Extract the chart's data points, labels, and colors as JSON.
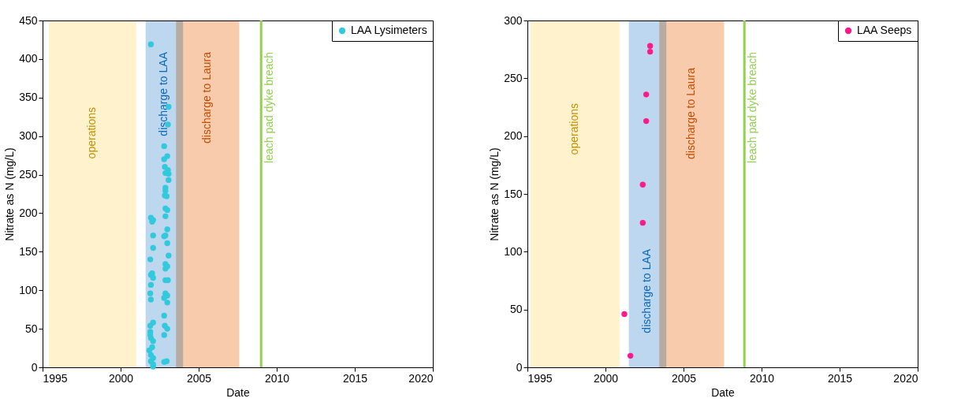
{
  "chart_data": [
    {
      "type": "scatter",
      "xlabel": "Date",
      "ylabel": "Nitrate as N (mg/L)",
      "xlim": [
        1995,
        2020
      ],
      "xticks": [
        1995,
        2000,
        2005,
        2010,
        2015,
        2020
      ],
      "ylim": [
        0,
        450
      ],
      "yticks": [
        0,
        50,
        100,
        150,
        200,
        250,
        300,
        350,
        400,
        450
      ],
      "legend": "top right",
      "marker": "circle",
      "grid": false,
      "bands": [
        {
          "axis": "x",
          "from": 1995.4,
          "to": 2001.0,
          "label": "operations",
          "color": "#fff2cc"
        },
        {
          "axis": "x",
          "from": 2001.6,
          "to": 2004.0,
          "label": "discharge to LAA",
          "color": "#bdd7ee"
        },
        {
          "axis": "x",
          "from": 2003.55,
          "to": 2007.6,
          "label": "discharge to Laura",
          "color": "#f8cbad"
        }
      ],
      "ref_lines": [
        {
          "axis": "x",
          "value": 2009,
          "label": "leach pad dyke breach",
          "color": "#92d050"
        }
      ],
      "series": [
        {
          "name": "LAA Lysimeters",
          "color": "#33c9dc",
          "x": [
            2001.94,
            2001.94,
            2002.08,
            2002.02,
            2002.08,
            2002.08,
            2001.9,
            2002.02,
            2001.94,
            2002.08,
            2001.94,
            2001.9,
            2001.94,
            2002.08,
            2001.9,
            2001.9,
            2001.9,
            2001.94,
            2002.08,
            2001.84,
            2002.02,
            2001.94,
            2002.08,
            2001.94,
            2002.08,
            2002.08,
            2003.07,
            2003.03,
            2002.79,
            2002.99,
            2002.79,
            2002.83,
            2003.03,
            2002.87,
            2003.07,
            2003.07,
            2002.87,
            2002.87,
            2002.83,
            2002.95,
            2002.87,
            2002.99,
            2002.87,
            2002.99,
            2002.87,
            2002.79,
            2002.99,
            2003.07,
            2002.87,
            2002.99,
            2002.87,
            2002.87,
            2003.03,
            2002.87,
            2002.99,
            2002.79,
            2002.99,
            2002.79,
            2002.83,
            2002.99,
            2002.79,
            2002.79,
            2002.95
          ],
          "values": [
            419,
            194,
            191,
            189,
            171,
            155,
            140,
            122,
            120,
            116,
            107,
            96,
            88,
            58,
            54,
            46,
            42,
            38,
            34,
            22,
            26,
            16,
            12,
            8,
            4,
            1,
            338,
            315,
            287,
            274,
            270,
            260,
            256,
            252,
            251,
            243,
            233,
            229,
            223,
            222,
            206,
            204,
            196,
            179,
            171,
            170,
            161,
            145,
            134,
            131,
            128,
            113,
            113,
            96,
            93,
            90,
            84,
            67,
            54,
            50,
            42,
            7,
            8
          ]
        }
      ]
    },
    {
      "type": "scatter",
      "xlabel": "Date",
      "ylabel": "Nitrate as N (mg/L)",
      "xlim": [
        1995,
        2020
      ],
      "xticks": [
        1995,
        2000,
        2005,
        2010,
        2015,
        2020
      ],
      "ylim": [
        0,
        300
      ],
      "yticks": [
        0,
        50,
        100,
        150,
        200,
        250,
        300
      ],
      "legend": "top right",
      "marker": "circle",
      "grid": false,
      "bands": [
        {
          "axis": "x",
          "from": 1995.2,
          "to": 2000.9,
          "label": "operations",
          "color": "#fff2cc"
        },
        {
          "axis": "x",
          "from": 2001.5,
          "to": 2003.9,
          "label": "discharge to LAA",
          "color": "#bdd7ee"
        },
        {
          "axis": "x",
          "from": 2003.45,
          "to": 2007.6,
          "label": "discharge to Laura",
          "color": "#f8cbad"
        }
      ],
      "ref_lines": [
        {
          "axis": "x",
          "value": 2008.9,
          "label": "leach pad dyke breach",
          "color": "#92d050"
        }
      ],
      "series": [
        {
          "name": "LAA Seeps",
          "color": "#ff1a8c",
          "x": [
            2001.21,
            2001.6,
            2002.39,
            2002.39,
            2002.61,
            2002.61,
            2002.86,
            2002.86
          ],
          "values": [
            46,
            10,
            125,
            158,
            213,
            236,
            273,
            278
          ]
        }
      ]
    }
  ]
}
